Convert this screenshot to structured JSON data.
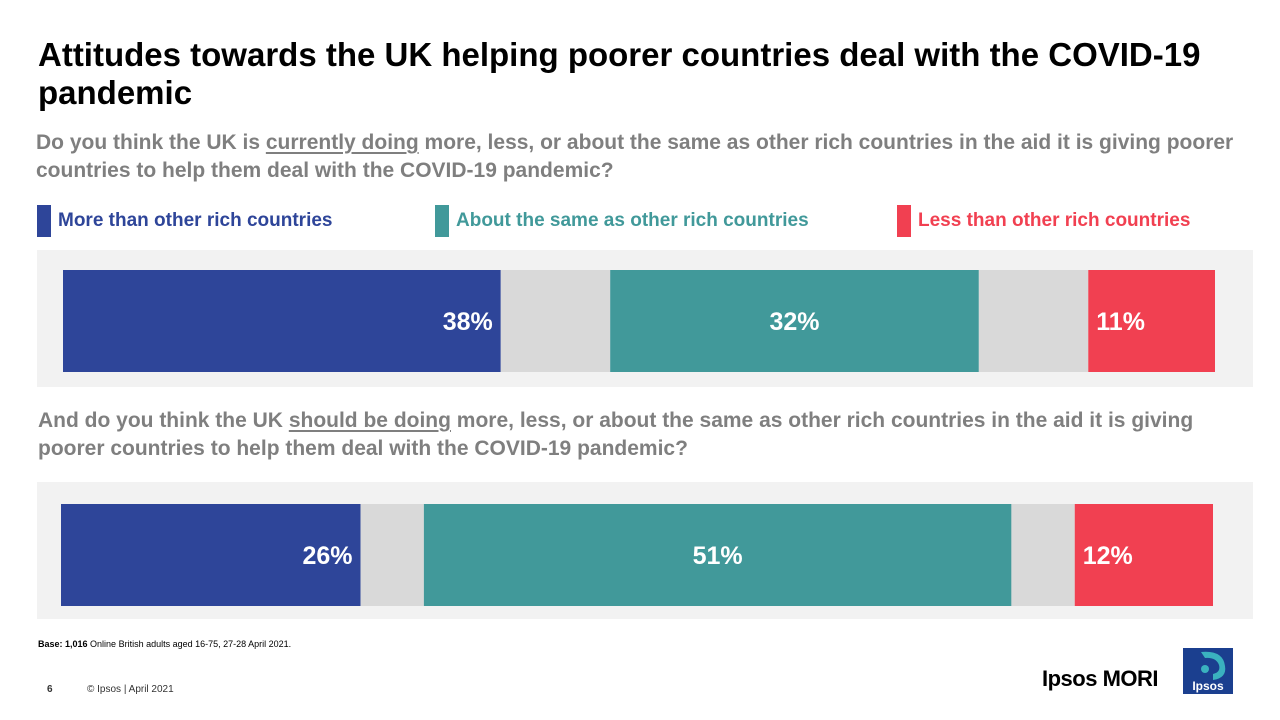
{
  "title": "Attitudes towards the UK helping poorer countries deal with the COVID-19 pandemic",
  "question1": {
    "before": "Do you think the UK is ",
    "emphasis": "currently doing",
    "after": " more, less, or about the same as other rich countries in the aid it is giving poorer countries to help them deal with the COVID-19 pandemic?"
  },
  "question2": {
    "before": "And do you think the UK ",
    "emphasis": "should be doing",
    "after": " more, less, or about the same as other rich countries in the aid it is giving poorer countries to help them deal with the COVID-19 pandemic?"
  },
  "legend": [
    {
      "label": "More than other rich countries",
      "color": "#2e4599"
    },
    {
      "label": "About the same as other rich countries",
      "color": "#41999a"
    },
    {
      "label": "Less than other rich countries",
      "color": "#f14051"
    }
  ],
  "chart_data": [
    {
      "type": "bar",
      "orientation": "horizontal-stacked",
      "series": [
        {
          "name": "More than other rich countries",
          "value": 38,
          "color": "#2e4599"
        },
        {
          "name": "Other",
          "value": 9.5,
          "color": "#d9d9d9"
        },
        {
          "name": "About the same as other rich countries",
          "value": 32,
          "color": "#41999a"
        },
        {
          "name": "Other",
          "value": 9.5,
          "color": "#d9d9d9"
        },
        {
          "name": "Less than other rich countries",
          "value": 11,
          "color": "#f14051"
        }
      ],
      "labels": [
        "38%",
        "",
        "32%",
        "",
        "11%"
      ],
      "xlim": [
        0,
        100
      ]
    },
    {
      "type": "bar",
      "orientation": "horizontal-stacked",
      "series": [
        {
          "name": "More than other rich countries",
          "value": 26,
          "color": "#2e4599"
        },
        {
          "name": "Other",
          "value": 5.5,
          "color": "#d9d9d9"
        },
        {
          "name": "About the same as other rich countries",
          "value": 51,
          "color": "#41999a"
        },
        {
          "name": "Other",
          "value": 5.5,
          "color": "#d9d9d9"
        },
        {
          "name": "Less than other rich countries",
          "value": 12,
          "color": "#f14051"
        }
      ],
      "labels": [
        "26%",
        "",
        "51%",
        "",
        "12%"
      ],
      "xlim": [
        0,
        100
      ]
    }
  ],
  "base": {
    "bold": "Base: 1,016",
    "text": " Online British adults aged 16-75, 27-28 April 2021."
  },
  "footer": {
    "page": "6",
    "copyright": "© Ipsos | April 2021"
  },
  "brand": {
    "name": "Ipsos MORI",
    "logo_text": "Ipsos"
  }
}
